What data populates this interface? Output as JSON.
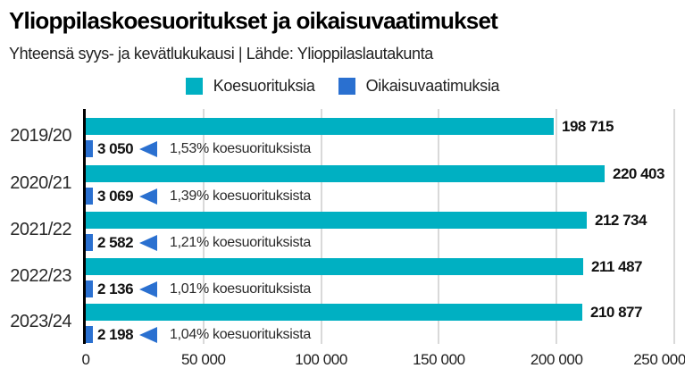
{
  "header": {
    "title": "Ylioppilaskoesuoritukset ja oikaisuvaatimukset",
    "subtitle": "Yhteensä syys- ja kevätlukukausi | Lähde: Ylioppilaslautakunta"
  },
  "legend": {
    "items": [
      {
        "label": "Koesuorituksia",
        "color": "#00b0c2"
      },
      {
        "label": "Oikaisuvaatimuksia",
        "color": "#2a70d0"
      }
    ]
  },
  "colors": {
    "exam_bar": "#00b0c2",
    "appeal_bar": "#2a70d0",
    "grid": "#d9d9d9",
    "axis": "#000000"
  },
  "chart_data": {
    "type": "bar",
    "orientation": "horizontal",
    "title": "Ylioppilaskoesuoritukset ja oikaisuvaatimukset",
    "subtitle": "Yhteensä syys- ja kevätlukukausi | Lähde: Ylioppilaslautakunta",
    "categories": [
      "2019/20",
      "2020/21",
      "2021/22",
      "2022/23",
      "2023/24"
    ],
    "series": [
      {
        "name": "Koesuorituksia",
        "color": "#00b0c2",
        "values": [
          198715,
          220403,
          212734,
          211487,
          210877
        ],
        "value_labels": [
          "198 715",
          "220 403",
          "212 734",
          "211 487",
          "210 877"
        ]
      },
      {
        "name": "Oikaisuvaatimuksia",
        "color": "#2a70d0",
        "values": [
          3050,
          3069,
          2582,
          2136,
          2198
        ],
        "value_labels": [
          "3 050",
          "3 069",
          "2 582",
          "2 136",
          "2 198"
        ]
      }
    ],
    "annotations": [
      "1,53% koesuorituksista",
      "1,39% koesuorituksista",
      "1,21% koesuorituksista",
      "1,01% koesuorituksista",
      "1,04% koesuorituksista"
    ],
    "xlim": [
      0,
      250000
    ],
    "x_ticks": [
      "0",
      "50 000",
      "100 000",
      "150 000",
      "200 000",
      "250 000"
    ],
    "grid": true,
    "legend_position": "top"
  }
}
